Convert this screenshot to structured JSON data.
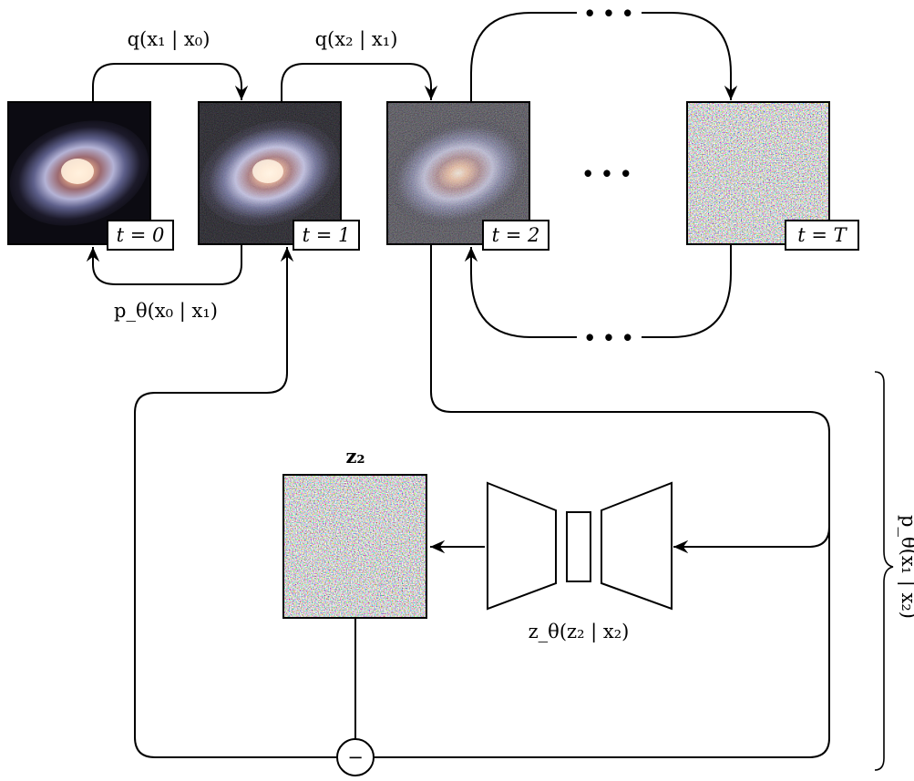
{
  "frames": [
    {
      "id": "x0",
      "tag": "t = 0",
      "kind": "galaxy",
      "noise": 0.0
    },
    {
      "id": "x1",
      "tag": "t = 1",
      "kind": "galaxy",
      "noise": 0.25
    },
    {
      "id": "x2",
      "tag": "t = 2",
      "kind": "galaxy",
      "noise": 0.6
    },
    {
      "id": "xT",
      "tag": "t = T",
      "kind": "noise",
      "noise": 1.0
    }
  ],
  "labels": {
    "forward_01": "q(x₁ | x₀)",
    "forward_12": "q(x₂ | x₁)",
    "reverse_10": "p_θ(x₀ | x₁)",
    "ellipsis": "• • •",
    "z_title": "z₂",
    "network": "z_θ(z₂ | x₂)",
    "brace": "p_θ(x₁ | x₂)",
    "minus": "−"
  },
  "colors": {
    "stroke": "#000000",
    "background": "#ffffff",
    "galaxy_core": "#f6c29a",
    "galaxy_arm": "#b9b6d6",
    "space": "#101018"
  }
}
